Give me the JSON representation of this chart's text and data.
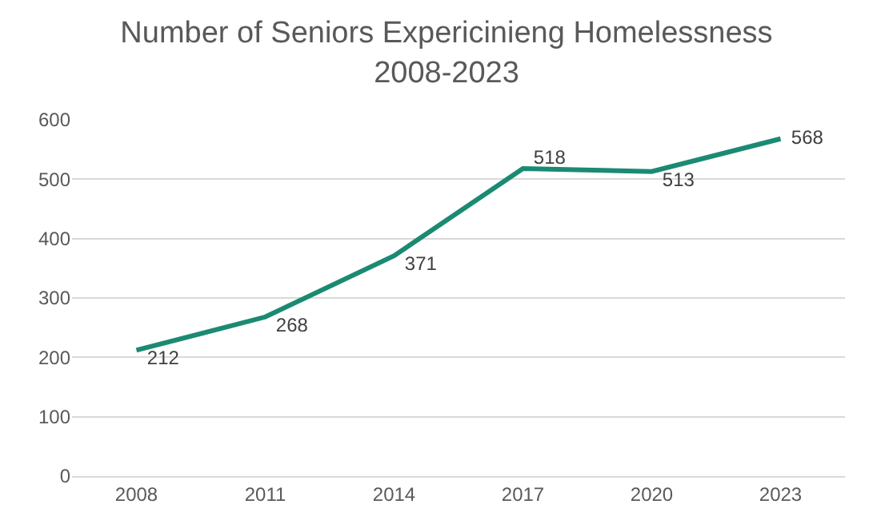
{
  "chart_data": {
    "type": "line",
    "title": "Number of Seniors Expericinieng Homelessness\n2008-2023",
    "categories": [
      "2008",
      "2011",
      "2014",
      "2017",
      "2020",
      "2023"
    ],
    "series": [
      {
        "color": "#1b8a73",
        "values": [
          212,
          268,
          371,
          518,
          513,
          568
        ]
      }
    ],
    "ylim": [
      0,
      600
    ],
    "yticks": [
      0,
      100,
      200,
      300,
      400,
      500,
      600
    ],
    "grid": "y",
    "data_labels": true,
    "marker": "none",
    "line_style": "solid"
  }
}
